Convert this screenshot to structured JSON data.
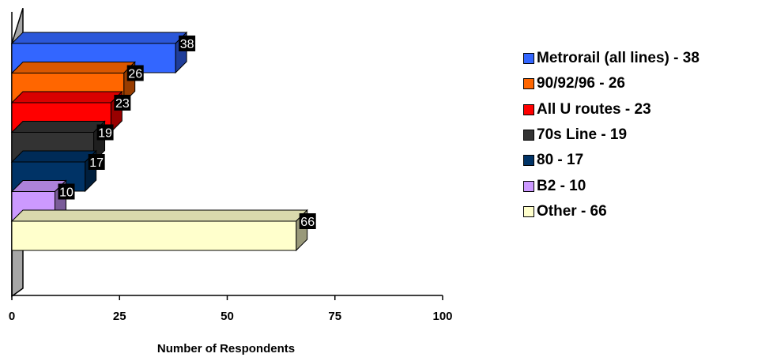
{
  "chart_data": {
    "type": "bar",
    "orientation": "horizontal",
    "style": "3d",
    "categories": [
      "Metrorail (all lines)",
      "90/92/96",
      "All U routes",
      "70s Line",
      "80",
      "B2",
      "Other"
    ],
    "values": [
      38,
      26,
      23,
      19,
      17,
      10,
      66
    ],
    "data_labels": [
      "38",
      "26",
      "23",
      "19",
      "17",
      "10",
      "66"
    ],
    "colors": [
      "#3366ff",
      "#ff6600",
      "#ff0000",
      "#333333",
      "#003366",
      "#cc99ff",
      "#ffffcc"
    ],
    "xlabel": "Number of Respondents",
    "ylabel": "",
    "xlim": [
      0,
      100
    ],
    "xticks": [
      "0",
      "25",
      "50",
      "75",
      "100"
    ],
    "grid": false,
    "legend_position": "right"
  },
  "legend": [
    {
      "label": "Metrorail (all lines) - 38",
      "color": "#3366ff"
    },
    {
      "label": "90/92/96 - 26",
      "color": "#ff6600"
    },
    {
      "label": "All U routes - 23",
      "color": "#ff0000"
    },
    {
      "label": "70s Line - 19",
      "color": "#333333"
    },
    {
      "label": "80 - 17",
      "color": "#003366"
    },
    {
      "label": "B2 - 10",
      "color": "#cc99ff"
    },
    {
      "label": "Other - 66",
      "color": "#ffffcc"
    }
  ]
}
